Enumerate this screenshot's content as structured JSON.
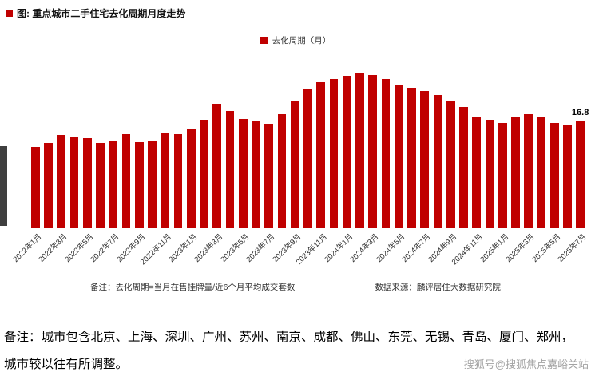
{
  "chart": {
    "title": "图: 重点城市二手住宅去化周期月度走势",
    "legend": "去化周期（月）",
    "note": "备注：去化周期=当月在售挂牌量/近6个月平均成交套数",
    "source": "数据来源：麟评居住大数据研究院",
    "bar_color": "#c00000",
    "last_value_label": "16.8"
  },
  "chart_data": {
    "type": "bar",
    "title": "重点城市二手住宅去化周期月度走势",
    "ylabel": "去化周期（月）",
    "xlabel": "",
    "legend_position": "top-center",
    "grid": false,
    "ylim": [
      0,
      26
    ],
    "categories": [
      "2022年1月",
      "2022年2月",
      "2022年3月",
      "2022年4月",
      "2022年5月",
      "2022年6月",
      "2022年7月",
      "2022年8月",
      "2022年9月",
      "2022年10月",
      "2022年11月",
      "2022年12月",
      "2023年1月",
      "2023年2月",
      "2023年3月",
      "2023年4月",
      "2023年5月",
      "2023年6月",
      "2023年7月",
      "2023年8月",
      "2023年9月",
      "2023年10月",
      "2023年11月",
      "2023年12月",
      "2024年1月",
      "2024年2月",
      "2024年3月",
      "2024年4月",
      "2024年5月",
      "2024年6月",
      "2024年7月",
      "2024年8月",
      "2024年9月",
      "2024年10月",
      "2024年11月",
      "2024年12月",
      "2025年1月",
      "2025年2月",
      "2025年3月",
      "2025年4月",
      "2025年5月",
      "2025年6月",
      "2025年7月"
    ],
    "values": [
      12.6,
      13.2,
      14.5,
      14.3,
      14.0,
      13.2,
      13.6,
      14.6,
      13.4,
      13.6,
      14.9,
      14.6,
      15.4,
      16.9,
      19.4,
      18.3,
      17.0,
      16.7,
      16.2,
      17.7,
      19.9,
      21.8,
      22.7,
      23.2,
      23.7,
      24.1,
      23.9,
      23.2,
      22.4,
      21.9,
      21.4,
      20.7,
      19.7,
      18.9,
      17.4,
      16.9,
      16.4,
      17.2,
      17.7,
      17.4,
      16.4,
      16.1,
      16.8
    ],
    "x_tick_labels_shown": [
      "2022年1月",
      "2022年3月",
      "2022年5月",
      "2022年7月",
      "2022年9月",
      "2022年11月",
      "2023年1月",
      "2023年3月",
      "2023年5月",
      "2023年7月",
      "2023年9月",
      "2023年11月",
      "2024年1月",
      "2024年3月",
      "2024年5月",
      "2024年7月",
      "2024年9月",
      "2024年11月",
      "2025年1月",
      "2025年3月",
      "2025年5月",
      "2025年7月"
    ],
    "annotations": [
      {
        "index": 42,
        "text": "16.8"
      }
    ]
  },
  "footer": {
    "line1": "备注：城市包含北京、上海、深圳、广州、苏州、南京、成都、佛山、东莞、无锡、青岛、厦门、郑州，",
    "line2": "城市较以往有所调整。",
    "watermark": "搜狐号@搜狐焦点嘉峪关站"
  }
}
